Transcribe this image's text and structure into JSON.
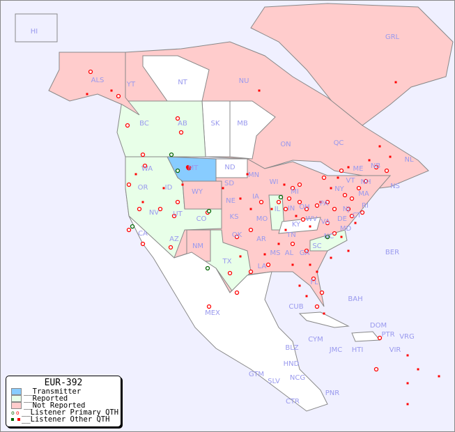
{
  "colors": {
    "background": "#f0f0ff",
    "transmitter": "#88ccff",
    "reported": "#e8ffe8",
    "not_reported": "#ffcccc",
    "not_colored": "#ffffff",
    "label": "#9999ee",
    "listener_primary": "#ff0000",
    "listener_other": "#ff0000",
    "reported_primary": "#006600"
  },
  "legend": {
    "title": "EUR-392",
    "items": [
      {
        "label": "__Transmitter",
        "type": "transmitter"
      },
      {
        "label": "__Reported",
        "type": "reported"
      },
      {
        "label": "__Not Reported",
        "type": "not_reported"
      },
      {
        "label": "__Listener Primary QTH",
        "type": "primary-marker"
      },
      {
        "label": "__Listener Other QTH",
        "type": "other-marker"
      }
    ]
  },
  "region_labels": [
    "HI",
    "ALS",
    "YT",
    "NT",
    "NU",
    "GRL",
    "BC",
    "AB",
    "SK",
    "MB",
    "ON",
    "QC",
    "NL",
    "NS",
    "NB",
    "WA",
    "MT",
    "ND",
    "MN",
    "OR",
    "ID",
    "WY",
    "SD",
    "WI",
    "MI",
    "NY",
    "VT",
    "NH",
    "ME",
    "MA",
    "CT",
    "RI",
    "NJ",
    "DE",
    "MD",
    "PA",
    "OH",
    "IN",
    "IL",
    "IA",
    "NE",
    "NV",
    "UT",
    "CO",
    "KS",
    "MO",
    "KY",
    "WV",
    "VA",
    "CA",
    "AZ",
    "NM",
    "OK",
    "AR",
    "TN",
    "NC",
    "SC",
    "MS",
    "AL",
    "GA",
    "TX",
    "LA",
    "FL",
    "MEX",
    "CUB",
    "BAH",
    "BER",
    "DOM",
    "PTR",
    "VRG",
    "VIR",
    "CYM",
    "JMC",
    "HTI",
    "BLZ",
    "HND",
    "GTM",
    "SLV",
    "NCG",
    "CTR",
    "PNR"
  ]
}
